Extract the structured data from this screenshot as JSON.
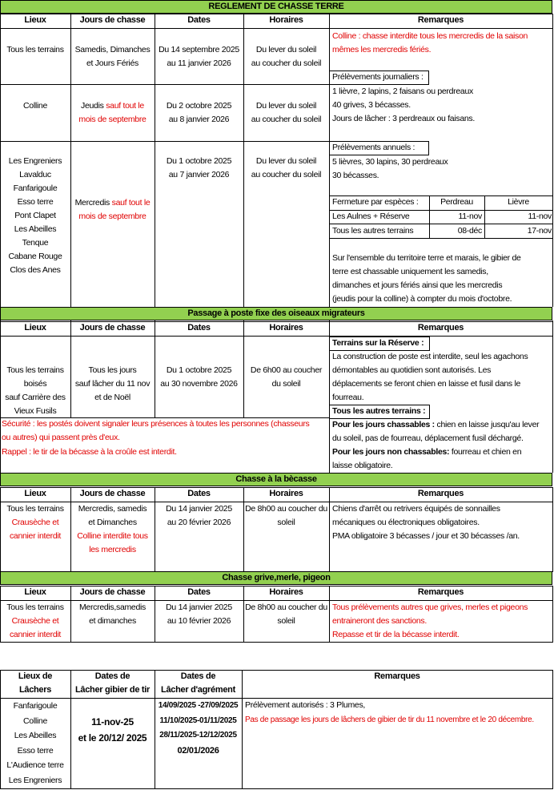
{
  "s1": {
    "title": "REGLEMENT DE CHASSE TERRE",
    "headers": [
      "Lieux",
      "Jours de chasse",
      "Dates",
      "Horaires",
      "Remarques"
    ],
    "r1": {
      "lieux": "Tous les terrains",
      "jours": [
        "Samedis, Dimanches",
        "et Jours Fériés"
      ],
      "dates": [
        "Du 14 septembre 2025",
        "au 11 janvier 2026"
      ],
      "horaires": [
        "Du lever du soleil",
        "au coucher du soleil"
      ],
      "rem_red": [
        "Colline : chasse interdite tous les mercredis de la saison",
        "mêmes les mercredis fériés."
      ]
    },
    "prelev_j": {
      "title": "Prélèvements journaliers :",
      "lines": [
        "1 lièvre, 2 lapins, 2 faisans ou perdreaux",
        "40 grives, 3 bécasses.",
        "Jours de lâcher : 3 perdreaux ou faisans."
      ]
    },
    "r2": {
      "lieux": "Colline",
      "jours_prefix": "Jeudis",
      "jours_red": "sauf tout le",
      "jours_red2": "mois de septembre",
      "dates": [
        "Du 2 octobre 2025",
        "au 8 janvier 2026"
      ],
      "horaires": [
        "Du lever du soleil",
        "au coucher du soleil"
      ]
    },
    "prelev_a": {
      "title": "Prélèvements annuels :",
      "lines": [
        "5 lièvres, 30 lapins, 30 perdreaux",
        "30 bécasses."
      ]
    },
    "r3": {
      "lieux": [
        "Les Engreniers",
        "Lavalduc",
        "Fanfarigoule",
        "Esso terre",
        "Pont Clapet",
        "Les Abeilles",
        "Tenque",
        "Cabane Rouge",
        "Clos des Anes"
      ],
      "dates": [
        "Du 1 octobre 2025",
        "au 7 janvier 2026"
      ],
      "horaires": [
        "Du lever du soleil",
        "au coucher du soleil"
      ],
      "jours_prefix": "Mercredis",
      "jours_red": "sauf tout le",
      "jours_red2": "mois de septembre"
    },
    "fermeture": {
      "label": "Fermeture par espèces :",
      "col1": "Perdreau",
      "col2": "Lièvre",
      "row1": [
        "Les Aulnes + Réserve",
        "11-nov",
        "11-nov"
      ],
      "row2": [
        "Tous les autres terrains",
        "08-déc",
        "17-nov"
      ]
    },
    "ensemble": [
      "Sur l'ensemble du territoire terre et marais, le gibier de",
      "terre est chassable uniquement les samedis,",
      "dimanches et jours fériés ainsi que les mercredis",
      "(jeudis pour la colline) à compter du mois d'octobre."
    ]
  },
  "s2": {
    "title": "Passage à poste fixe des oiseaux migrateurs",
    "headers": [
      "Lieux",
      "Jours de chasse",
      "Dates",
      "Horaires",
      "Remarques"
    ],
    "lieux": [
      "Tous les terrains",
      "boisés",
      "sauf Carrière des",
      "Vieux Fusils"
    ],
    "jours": [
      "Tous les jours",
      "sauf lâcher du 11 nov",
      "et de Noël"
    ],
    "dates": [
      "Du 1 octobre 2025",
      "au 30 novembre 2026"
    ],
    "horaires": [
      "De 6h00 au coucher",
      "du soleil"
    ],
    "rem_title1": "Terrains sur la Réserve :",
    "rem_lines1": [
      "La construction de poste est interdite, seul les agachons",
      "démontables au quotidien sont autorisés. Les",
      "déplacements se feront chien en laisse et fusil dans le",
      "fourreau."
    ],
    "rem_title2": "Tous les autres terrains :",
    "rem_b1": "Pour les jours chassables :",
    "rem_b1_text": " chien en laisse jusqu'au lever",
    "rem_b1_line2": "du soleil, pas de fourreau, déplacement fusil déchargé.",
    "rem_b2": "Pour les jours non chassables:",
    "rem_b2_text": " fourreau et chien en",
    "rem_b2_line2": "laisse obligatoire.",
    "securite": [
      "Sécurité : les postés doivent signaler leurs présences à toutes les personnes (chasseurs",
      "ou autres) qui passent près d'eux."
    ],
    "rappel": "Rappel : le tir de la bécasse à la croûle est interdit."
  },
  "s3": {
    "title": "Chasse à la bècasse",
    "headers": [
      "Lieux",
      "Jours de chasse",
      "Dates",
      "Horaires",
      "Remarques"
    ],
    "lieux": "Tous les terrains",
    "lieux_red": [
      "Crausèche et",
      "cannier interdit"
    ],
    "jours": [
      "Mercredis, samedis",
      "et Dimanches"
    ],
    "jours_red": [
      "Colline interdite tous",
      "les mercredis"
    ],
    "dates": [
      "Du 14 janvier 2025",
      "au 20 février 2026"
    ],
    "horaires": [
      "De 8h00 au coucher du",
      "soleil"
    ],
    "rem": [
      "Chiens d'arrêt ou retrivers équipés de sonnailles",
      "mécaniques ou électroniques obligatoires.",
      "PMA obligatoire 3 bécasses / jour et 30 bécasses /an."
    ]
  },
  "s4": {
    "title": "Chasse grive,merle, pigeon",
    "headers": [
      "Lieux",
      "Jours de chasse",
      "Dates",
      "Horaires",
      "Remarques"
    ],
    "lieux": "Tous les terrains",
    "lieux_red": [
      "Crausèche et",
      "cannier interdit"
    ],
    "jours": [
      "Mercredis,samedis",
      "et dimanches"
    ],
    "dates": [
      "Du 14 janvier 2025",
      "au 10 février 2026"
    ],
    "horaires": [
      "De 8h00 au coucher du",
      "soleil"
    ],
    "rem_red": [
      "Tous prélèvements autres que grives, merles et pigeons",
      "entraineront des sanctions.",
      "Repasse et tir de la bécasse interdit."
    ]
  },
  "s5": {
    "h_lieux": [
      "Lieux de",
      "Lâchers"
    ],
    "h_tir": [
      "Dates de",
      "Lâcher gibier de tir"
    ],
    "h_agr": [
      "Dates de",
      "Lâcher d'agrément"
    ],
    "h_rem": "Remarques",
    "lieux": [
      "Fanfarigoule",
      "Colline",
      "Les Abeilles",
      "Esso terre",
      "L'Audience terre",
      "Les Engreniers"
    ],
    "tir": [
      "11-nov-25",
      "et le 20/12/ 2025"
    ],
    "agr": [
      "14/09/2025 -27/09/2025",
      "11/10/2025-01/11/2025",
      "28/11/2025-12/12/2025",
      "02/01/2026"
    ],
    "rem1": "Prélèvement autorisés : 3 Plumes,",
    "rem2_red": "Pas de passage les jours de lâchers de gibier de tir du 11 novembre et le 20 décembre."
  }
}
